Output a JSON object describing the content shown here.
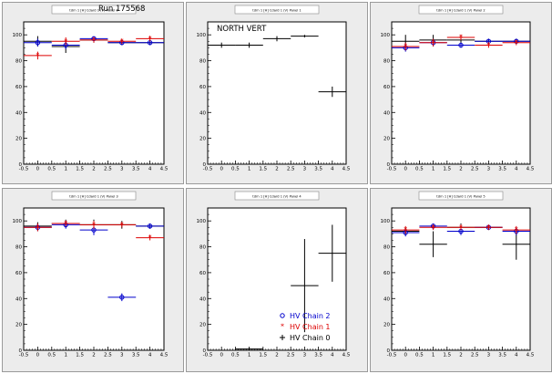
{
  "run_label": "Run 175568",
  "chart_data": [
    {
      "type": "scatter",
      "title": "tdrn 1 [H] Cdard 1 (V) Panel 0",
      "x_ticks": [
        "-0.5",
        "0",
        "0.5",
        "1",
        "1.5",
        "2",
        "2.5",
        "3",
        "3.5",
        "4",
        "4.5"
      ],
      "y_ticks": [
        "0",
        "20",
        "40",
        "60",
        "80",
        "100"
      ],
      "xlim": [
        -0.5,
        4.5
      ],
      "ylim": [
        0,
        110
      ],
      "series": [
        {
          "color": "#000000",
          "marker": "cross",
          "points": [
            {
              "x": 0,
              "y": 95,
              "ey": 4
            },
            {
              "x": 1,
              "y": 91,
              "ey": 5
            },
            {
              "x": 2,
              "y": 96,
              "ey": 2
            },
            {
              "x": 3,
              "y": 94,
              "ey": 2
            },
            {
              "x": 4,
              "y": 94,
              "ey": 2
            }
          ]
        },
        {
          "color": "#0000cc",
          "marker": "circle",
          "points": [
            {
              "x": 0,
              "y": 94,
              "ey": 3
            },
            {
              "x": 1,
              "y": 92,
              "ey": 3
            },
            {
              "x": 2,
              "y": 97,
              "ey": 2
            },
            {
              "x": 3,
              "y": 94,
              "ey": 2
            },
            {
              "x": 4,
              "y": 94,
              "ey": 2
            }
          ]
        },
        {
          "color": "#dd0000",
          "marker": "star",
          "points": [
            {
              "x": 0,
              "y": 84,
              "ey": 3
            },
            {
              "x": 1,
              "y": 95,
              "ey": 3
            },
            {
              "x": 2,
              "y": 96,
              "ey": 2
            },
            {
              "x": 3,
              "y": 95,
              "ey": 2
            },
            {
              "x": 4,
              "y": 97,
              "ey": 2
            }
          ]
        }
      ]
    },
    {
      "type": "scatter",
      "title": "tdrn 1 [H] Cdard 1 (V) Panel 1",
      "annotation": "NORTH VERT",
      "x_ticks": [
        "-0.5",
        "0",
        "0.5",
        "1",
        "1.5",
        "2",
        "2.5",
        "3",
        "3.5",
        "4",
        "4.5"
      ],
      "y_ticks": [
        "0",
        "20",
        "40",
        "60",
        "80",
        "100"
      ],
      "xlim": [
        -0.5,
        4.5
      ],
      "ylim": [
        0,
        110
      ],
      "series": [
        {
          "color": "#000000",
          "marker": "cross",
          "points": [
            {
              "x": 0,
              "y": 92,
              "ey": 2
            },
            {
              "x": 1,
              "y": 92,
              "ey": 2
            },
            {
              "x": 2,
              "y": 97,
              "ey": 2
            },
            {
              "x": 3,
              "y": 99,
              "ey": 1
            },
            {
              "x": 4,
              "y": 56,
              "ey": 4
            }
          ]
        }
      ]
    },
    {
      "type": "scatter",
      "title": "tdrn 1 [H] Cdard 1 (V) Panel 2",
      "x_ticks": [
        "-0.5",
        "0",
        "0.5",
        "1",
        "1.5",
        "2",
        "2.5",
        "3",
        "3.5",
        "4",
        "4.5"
      ],
      "y_ticks": [
        "0",
        "20",
        "40",
        "60",
        "80",
        "100"
      ],
      "xlim": [
        -0.5,
        4.5
      ],
      "ylim": [
        0,
        110
      ],
      "series": [
        {
          "color": "#000000",
          "marker": "cross",
          "points": [
            {
              "x": 0,
              "y": 95,
              "ey": 5
            },
            {
              "x": 1,
              "y": 96,
              "ey": 4
            },
            {
              "x": 2,
              "y": 96,
              "ey": 3
            },
            {
              "x": 3,
              "y": 95,
              "ey": 2
            },
            {
              "x": 4,
              "y": 95,
              "ey": 2
            }
          ]
        },
        {
          "color": "#0000cc",
          "marker": "circle",
          "points": [
            {
              "x": 0,
              "y": 90,
              "ey": 3
            },
            {
              "x": 1,
              "y": 94,
              "ey": 3
            },
            {
              "x": 2,
              "y": 92,
              "ey": 2
            },
            {
              "x": 3,
              "y": 95,
              "ey": 2
            },
            {
              "x": 4,
              "y": 95,
              "ey": 2
            }
          ]
        },
        {
          "color": "#dd0000",
          "marker": "star",
          "points": [
            {
              "x": 0,
              "y": 91,
              "ey": 3
            },
            {
              "x": 1,
              "y": 94,
              "ey": 3
            },
            {
              "x": 2,
              "y": 98,
              "ey": 2
            },
            {
              "x": 3,
              "y": 92,
              "ey": 2
            },
            {
              "x": 4,
              "y": 94,
              "ey": 2
            }
          ]
        }
      ]
    },
    {
      "type": "scatter",
      "title": "tdrn 1 [H] Cdard 1 (V) Panel 3",
      "x_ticks": [
        "-0.5",
        "0",
        "0.5",
        "1",
        "1.5",
        "2",
        "2.5",
        "3",
        "3.5",
        "4",
        "4.5"
      ],
      "y_ticks": [
        "0",
        "20",
        "40",
        "60",
        "80",
        "100"
      ],
      "xlim": [
        -0.5,
        4.5
      ],
      "ylim": [
        0,
        110
      ],
      "series": [
        {
          "color": "#000000",
          "marker": "cross",
          "points": [
            {
              "x": 0,
              "y": 96,
              "ey": 3
            },
            {
              "x": 1,
              "y": 98,
              "ey": 3
            },
            {
              "x": 2,
              "y": 97,
              "ey": 4
            },
            {
              "x": 3,
              "y": 97,
              "ey": 3
            },
            {
              "x": 4,
              "y": 96,
              "ey": 2
            }
          ]
        },
        {
          "color": "#0000cc",
          "marker": "circle",
          "points": [
            {
              "x": 0,
              "y": 95,
              "ey": 3
            },
            {
              "x": 1,
              "y": 97,
              "ey": 3
            },
            {
              "x": 2,
              "y": 93,
              "ey": 4
            },
            {
              "x": 3,
              "y": 41,
              "ey": 3
            },
            {
              "x": 4,
              "y": 96,
              "ey": 2
            }
          ]
        },
        {
          "color": "#dd0000",
          "marker": "star",
          "points": [
            {
              "x": 0,
              "y": 95,
              "ey": 3
            },
            {
              "x": 1,
              "y": 98,
              "ey": 2
            },
            {
              "x": 2,
              "y": 97,
              "ey": 3
            },
            {
              "x": 3,
              "y": 97,
              "ey": 2
            },
            {
              "x": 4,
              "y": 87,
              "ey": 2
            }
          ]
        }
      ]
    },
    {
      "type": "scatter",
      "title": "tdrn 1 [H] Cdard 1 (V) Panel 4",
      "x_ticks": [
        "-0.5",
        "0",
        "0.5",
        "1",
        "1.5",
        "2",
        "2.5",
        "3",
        "3.5",
        "4",
        "4.5"
      ],
      "y_ticks": [
        "0",
        "20",
        "40",
        "60",
        "80",
        "100"
      ],
      "xlim": [
        -0.5,
        4.5
      ],
      "ylim": [
        0,
        110
      ],
      "legend": {
        "position": "bottom-right",
        "entries": [
          {
            "label": "HV Chain 2",
            "color": "#0000cc",
            "marker": "circle"
          },
          {
            "label": "HV Chain 1",
            "color": "#dd0000",
            "marker": "star"
          },
          {
            "label": "HV Chain 0",
            "color": "#000000",
            "marker": "cross"
          }
        ]
      },
      "series": [
        {
          "color": "#000000",
          "marker": "cross",
          "points": [
            {
              "x": 1,
              "y": 1,
              "ey": 1
            },
            {
              "x": 3,
              "y": 50,
              "ey": 36
            },
            {
              "x": 4,
              "y": 75,
              "ey": 22
            }
          ]
        }
      ]
    },
    {
      "type": "scatter",
      "title": "tdrn 1 [H] Cdard 1 (V) Panel 5",
      "x_ticks": [
        "-0.5",
        "0",
        "0.5",
        "1",
        "1.5",
        "2",
        "2.5",
        "3",
        "3.5",
        "4",
        "4.5"
      ],
      "y_ticks": [
        "0",
        "20",
        "40",
        "60",
        "80",
        "100"
      ],
      "xlim": [
        -0.5,
        4.5
      ],
      "ylim": [
        0,
        110
      ],
      "series": [
        {
          "color": "#000000",
          "marker": "cross",
          "points": [
            {
              "x": 0,
              "y": 92,
              "ey": 3
            },
            {
              "x": 1,
              "y": 82,
              "ey": 10
            },
            {
              "x": 2,
              "y": 95,
              "ey": 3
            },
            {
              "x": 3,
              "y": 95,
              "ey": 2
            },
            {
              "x": 4,
              "y": 82,
              "ey": 12
            }
          ]
        },
        {
          "color": "#0000cc",
          "marker": "circle",
          "points": [
            {
              "x": 0,
              "y": 91,
              "ey": 3
            },
            {
              "x": 1,
              "y": 96,
              "ey": 2
            },
            {
              "x": 2,
              "y": 92,
              "ey": 3
            },
            {
              "x": 3,
              "y": 95,
              "ey": 2
            },
            {
              "x": 4,
              "y": 92,
              "ey": 3
            }
          ]
        },
        {
          "color": "#dd0000",
          "marker": "star",
          "points": [
            {
              "x": 0,
              "y": 93,
              "ey": 3
            },
            {
              "x": 1,
              "y": 95,
              "ey": 2
            },
            {
              "x": 2,
              "y": 95,
              "ey": 2
            },
            {
              "x": 3,
              "y": 95,
              "ey": 2
            },
            {
              "x": 4,
              "y": 93,
              "ey": 3
            }
          ]
        }
      ]
    }
  ]
}
